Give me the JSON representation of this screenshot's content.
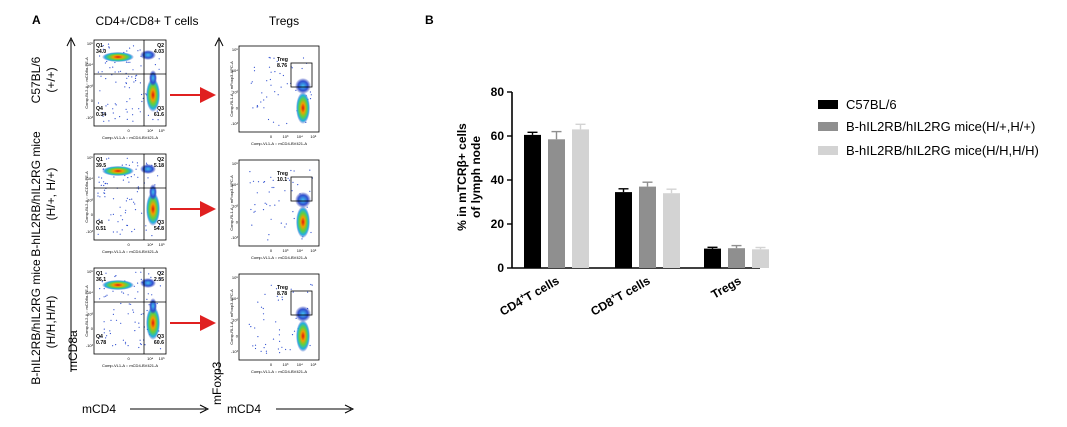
{
  "panel_a": {
    "label": "A",
    "col1_title": "CD4+/CD8+ T cells",
    "col2_title": "Tregs",
    "ylabel_col1": "mCD8a",
    "ylabel_col2": "mFoxp3",
    "xlabel_col1": "mCD4",
    "xlabel_col2": "mCD4",
    "rows": [
      {
        "label_lines": [
          "C57BL/6",
          "(+/+)"
        ],
        "quadrants": {
          "q1": "Q1",
          "q1_value": "34.0",
          "q2": "Q2",
          "q2_value": "4.03",
          "q3": "Q3",
          "q3_value": "61.6",
          "q4": "Q4",
          "q4_value": "0.34"
        },
        "treg_label": "Treg",
        "treg_value": "8.76"
      },
      {
        "label_lines": [
          "B-hIL2RB/hIL2RG mice",
          "(H/+, H/+)"
        ],
        "quadrants": {
          "q1": "Q1",
          "q1_value": "39.5",
          "q2": "Q2",
          "q2_value": "5.18",
          "q3": "Q3",
          "q3_value": "54.8",
          "q4": "Q4",
          "q4_value": "0.51"
        },
        "treg_label": "Treg",
        "treg_value": "10.1"
      },
      {
        "label_lines": [
          "B-hIL2RB/hIL2RG mice",
          "(H/H,H/H)"
        ],
        "quadrants": {
          "q1": "Q1",
          "q1_value": "36.1",
          "q2": "Q2",
          "q2_value": "2.55",
          "q3": "Q3",
          "q3_value": "60.6",
          "q4": "Q4",
          "q4_value": "0.78"
        },
        "treg_label": "Treg",
        "treg_value": "8.78"
      }
    ],
    "facs_axis_text": {
      "cd_x": "Comp-VL1-A :: mCD4-BV421-A",
      "cd_y": "Comp-BL2-A :: mCD8a-PE-A",
      "treg_x": "Comp-VL1-A :: mCD4-BV421-A",
      "treg_y": "Comp-RL1-A :: mFoxp3-APC-A",
      "tick_0": "0",
      "tick_3": "10³",
      "tick_4": "10⁴",
      "tick_5": "10⁵",
      "tick_neg": "-10³"
    }
  },
  "panel_b": {
    "label": "B"
  },
  "chart_data": {
    "type": "bar",
    "ylabel_lines": [
      "% in mTCRβ+ cells",
      "of lymph node"
    ],
    "ylim": [
      0,
      80
    ],
    "yticks": [
      0,
      20,
      40,
      60,
      80
    ],
    "grid": false,
    "legend_position": "right",
    "categories": [
      {
        "main": "CD4",
        "sup": "+",
        "rest": "T cells"
      },
      {
        "main": "CD8",
        "sup": "+",
        "rest": "T cells"
      },
      {
        "main": "Tregs",
        "sup": "",
        "rest": ""
      }
    ],
    "series": [
      {
        "name": "C57BL/6",
        "color": "#000000",
        "values": [
          60.5,
          34.5,
          8.8
        ],
        "errors": [
          1.2,
          1.5,
          0.6
        ]
      },
      {
        "name": "B-hIL2RB/hIL2RG mice(H/+,H/+)",
        "color": "#8f8f8f",
        "values": [
          58.5,
          37.0,
          9.0
        ],
        "errors": [
          3.5,
          2.0,
          1.2
        ]
      },
      {
        "name": "B-hIL2RB/hIL2RG mice(H/H,H/H)",
        "color": "#d3d3d3",
        "values": [
          63.0,
          34.0,
          8.5
        ],
        "errors": [
          2.3,
          1.8,
          0.8
        ]
      }
    ]
  }
}
